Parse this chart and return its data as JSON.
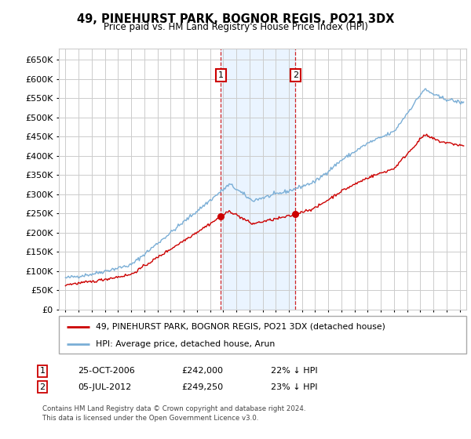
{
  "title": "49, PINEHURST PARK, BOGNOR REGIS, PO21 3DX",
  "subtitle": "Price paid vs. HM Land Registry's House Price Index (HPI)",
  "ylim": [
    0,
    680000
  ],
  "yticks": [
    0,
    50000,
    100000,
    150000,
    200000,
    250000,
    300000,
    350000,
    400000,
    450000,
    500000,
    550000,
    600000,
    650000
  ],
  "ytick_labels": [
    "£0",
    "£50K",
    "£100K",
    "£150K",
    "£200K",
    "£250K",
    "£300K",
    "£350K",
    "£400K",
    "£450K",
    "£500K",
    "£550K",
    "£600K",
    "£650K"
  ],
  "xlim_start": 1994.5,
  "xlim_end": 2025.5,
  "xticks": [
    1995,
    1996,
    1997,
    1998,
    1999,
    2000,
    2001,
    2002,
    2003,
    2004,
    2005,
    2006,
    2007,
    2008,
    2009,
    2010,
    2011,
    2012,
    2013,
    2014,
    2015,
    2016,
    2017,
    2018,
    2019,
    2020,
    2021,
    2022,
    2023,
    2024,
    2025
  ],
  "sale1_x": 2006.82,
  "sale1_y": 242000,
  "sale1_label": "1",
  "sale1_date": "25-OCT-2006",
  "sale1_price": "£242,000",
  "sale1_hpi": "22% ↓ HPI",
  "sale2_x": 2012.5,
  "sale2_y": 249250,
  "sale2_label": "2",
  "sale2_date": "05-JUL-2012",
  "sale2_price": "£249,250",
  "sale2_hpi": "23% ↓ HPI",
  "hpi_color": "#7aaed6",
  "sale_color": "#cc0000",
  "legend_line1": "49, PINEHURST PARK, BOGNOR REGIS, PO21 3DX (detached house)",
  "legend_line2": "HPI: Average price, detached house, Arun",
  "footnote1": "Contains HM Land Registry data © Crown copyright and database right 2024.",
  "footnote2": "This data is licensed under the Open Government Licence v3.0.",
  "background_color": "#ffffff",
  "grid_color": "#cccccc",
  "shaded_region_color": "#ddeeff"
}
